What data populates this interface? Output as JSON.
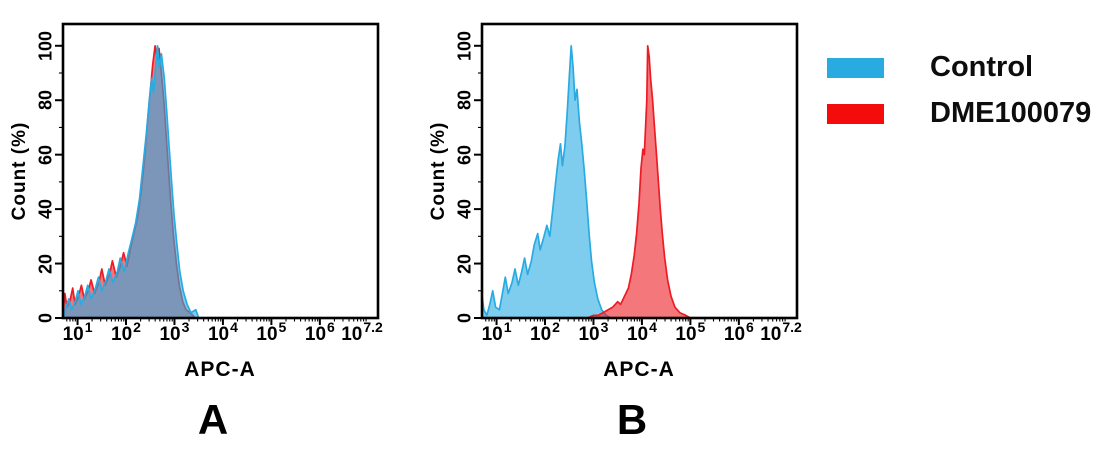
{
  "figure": {
    "background": "#ffffff",
    "legend": {
      "items": [
        {
          "label": "Control",
          "color": "#29abe2"
        },
        {
          "label": "DME100079",
          "color": "#f40b0b"
        }
      ]
    }
  },
  "chart_data": [
    {
      "type": "area",
      "panel_label": "A",
      "xlabel": "APC-A",
      "ylabel": "Count (%)",
      "x_scale": "log10",
      "x_domain_log10": [
        0.7,
        7.2
      ],
      "y_domain": [
        0,
        108
      ],
      "x_tick_exponents": [
        "1",
        "2",
        "3",
        "4",
        "5",
        "6",
        "7.2"
      ],
      "y_ticks": [
        0,
        20,
        40,
        60,
        80,
        100
      ],
      "y_minor_step": 10,
      "grid": false,
      "legend_position": "none",
      "series": [
        {
          "name": "DME100079",
          "color": "#ed1c24",
          "fill_opacity": 0.6,
          "points": [
            [
              0.7,
              2
            ],
            [
              0.74,
              9
            ],
            [
              0.78,
              4
            ],
            [
              0.84,
              6
            ],
            [
              0.9,
              11
            ],
            [
              0.95,
              5
            ],
            [
              1.02,
              8
            ],
            [
              1.08,
              12
            ],
            [
              1.14,
              7
            ],
            [
              1.22,
              10
            ],
            [
              1.28,
              14
            ],
            [
              1.35,
              9
            ],
            [
              1.44,
              13
            ],
            [
              1.5,
              18
            ],
            [
              1.57,
              12
            ],
            [
              1.66,
              16
            ],
            [
              1.72,
              21
            ],
            [
              1.8,
              15
            ],
            [
              1.88,
              19
            ],
            [
              1.95,
              24
            ],
            [
              2.02,
              19
            ],
            [
              2.1,
              26
            ],
            [
              2.16,
              31
            ],
            [
              2.24,
              37
            ],
            [
              2.31,
              46
            ],
            [
              2.38,
              58
            ],
            [
              2.44,
              71
            ],
            [
              2.5,
              83
            ],
            [
              2.55,
              93
            ],
            [
              2.6,
              100
            ],
            [
              2.64,
              95
            ],
            [
              2.68,
              99
            ],
            [
              2.73,
              90
            ],
            [
              2.78,
              80
            ],
            [
              2.83,
              67
            ],
            [
              2.88,
              54
            ],
            [
              2.93,
              41
            ],
            [
              2.98,
              30
            ],
            [
              3.04,
              20
            ],
            [
              3.1,
              12
            ],
            [
              3.17,
              6
            ],
            [
              3.24,
              3
            ],
            [
              3.32,
              2
            ],
            [
              3.38,
              1
            ],
            [
              3.42,
              0
            ]
          ]
        },
        {
          "name": "Control",
          "color": "#29abe2",
          "fill_opacity": 0.6,
          "points": [
            [
              0.7,
              0
            ],
            [
              0.76,
              4
            ],
            [
              0.82,
              7
            ],
            [
              0.88,
              3
            ],
            [
              0.95,
              6
            ],
            [
              1.01,
              10
            ],
            [
              1.07,
              5
            ],
            [
              1.15,
              8
            ],
            [
              1.21,
              12
            ],
            [
              1.28,
              7
            ],
            [
              1.37,
              11
            ],
            [
              1.43,
              15
            ],
            [
              1.5,
              10
            ],
            [
              1.59,
              14
            ],
            [
              1.65,
              18
            ],
            [
              1.73,
              13
            ],
            [
              1.82,
              17
            ],
            [
              1.88,
              22
            ],
            [
              1.96,
              17
            ],
            [
              2.05,
              24
            ],
            [
              2.12,
              29
            ],
            [
              2.2,
              35
            ],
            [
              2.28,
              44
            ],
            [
              2.35,
              56
            ],
            [
              2.42,
              68
            ],
            [
              2.48,
              80
            ],
            [
              2.53,
              88
            ],
            [
              2.57,
              83
            ],
            [
              2.62,
              94
            ],
            [
              2.65,
              100
            ],
            [
              2.69,
              92
            ],
            [
              2.73,
              97
            ],
            [
              2.79,
              88
            ],
            [
              2.84,
              76
            ],
            [
              2.89,
              63
            ],
            [
              2.94,
              50
            ],
            [
              2.99,
              38
            ],
            [
              3.05,
              27
            ],
            [
              3.11,
              17
            ],
            [
              3.18,
              10
            ],
            [
              3.26,
              5
            ],
            [
              3.34,
              2
            ],
            [
              3.44,
              3
            ],
            [
              3.5,
              0
            ]
          ]
        }
      ]
    },
    {
      "type": "area",
      "panel_label": "B",
      "xlabel": "APC-A",
      "ylabel": "Count (%)",
      "x_scale": "log10",
      "x_domain_log10": [
        0.7,
        7.2
      ],
      "y_domain": [
        0,
        108
      ],
      "x_tick_exponents": [
        "1",
        "2",
        "3",
        "4",
        "5",
        "6",
        "7.2"
      ],
      "y_ticks": [
        0,
        20,
        40,
        60,
        80,
        100
      ],
      "y_minor_step": 10,
      "grid": false,
      "legend_position": "none",
      "series": [
        {
          "name": "Control",
          "color": "#29abe2",
          "fill_opacity": 0.6,
          "points": [
            [
              0.7,
              8
            ],
            [
              0.74,
              3
            ],
            [
              0.8,
              1
            ],
            [
              0.86,
              5
            ],
            [
              0.92,
              10
            ],
            [
              0.98,
              4
            ],
            [
              1.06,
              3
            ],
            [
              1.12,
              9
            ],
            [
              1.18,
              15
            ],
            [
              1.24,
              9
            ],
            [
              1.32,
              13
            ],
            [
              1.38,
              18
            ],
            [
              1.45,
              12
            ],
            [
              1.52,
              17
            ],
            [
              1.58,
              22
            ],
            [
              1.64,
              16
            ],
            [
              1.72,
              21
            ],
            [
              1.78,
              27
            ],
            [
              1.85,
              31
            ],
            [
              1.9,
              25
            ],
            [
              1.98,
              30
            ],
            [
              2.04,
              34
            ],
            [
              2.1,
              30
            ],
            [
              2.16,
              40
            ],
            [
              2.22,
              50
            ],
            [
              2.27,
              58
            ],
            [
              2.32,
              64
            ],
            [
              2.36,
              56
            ],
            [
              2.41,
              63
            ],
            [
              2.46,
              76
            ],
            [
              2.5,
              88
            ],
            [
              2.54,
              100
            ],
            [
              2.58,
              92
            ],
            [
              2.62,
              80
            ],
            [
              2.66,
              84
            ],
            [
              2.71,
              72
            ],
            [
              2.76,
              64
            ],
            [
              2.81,
              54
            ],
            [
              2.86,
              43
            ],
            [
              2.91,
              31
            ],
            [
              2.96,
              21
            ],
            [
              3.02,
              13
            ],
            [
              3.09,
              7
            ],
            [
              3.17,
              3
            ],
            [
              3.26,
              1
            ],
            [
              3.36,
              0
            ]
          ]
        },
        {
          "name": "DME100079",
          "color": "#ed1c24",
          "fill_opacity": 0.6,
          "points": [
            [
              2.88,
              0
            ],
            [
              3.0,
              1
            ],
            [
              3.1,
              1
            ],
            [
              3.2,
              2
            ],
            [
              3.3,
              3
            ],
            [
              3.4,
              4
            ],
            [
              3.5,
              6
            ],
            [
              3.56,
              5
            ],
            [
              3.64,
              8
            ],
            [
              3.72,
              11
            ],
            [
              3.78,
              16
            ],
            [
              3.84,
              23
            ],
            [
              3.89,
              31
            ],
            [
              3.94,
              42
            ],
            [
              3.98,
              55
            ],
            [
              4.02,
              62
            ],
            [
              4.05,
              60
            ],
            [
              4.08,
              72
            ],
            [
              4.1,
              80
            ],
            [
              4.12,
              100
            ],
            [
              4.15,
              96
            ],
            [
              4.18,
              88
            ],
            [
              4.22,
              80
            ],
            [
              4.26,
              70
            ],
            [
              4.3,
              60
            ],
            [
              4.34,
              50
            ],
            [
              4.38,
              40
            ],
            [
              4.42,
              31
            ],
            [
              4.47,
              22
            ],
            [
              4.53,
              14
            ],
            [
              4.6,
              8
            ],
            [
              4.68,
              4
            ],
            [
              4.78,
              2
            ],
            [
              4.9,
              1
            ],
            [
              5.0,
              0
            ]
          ]
        }
      ]
    }
  ]
}
